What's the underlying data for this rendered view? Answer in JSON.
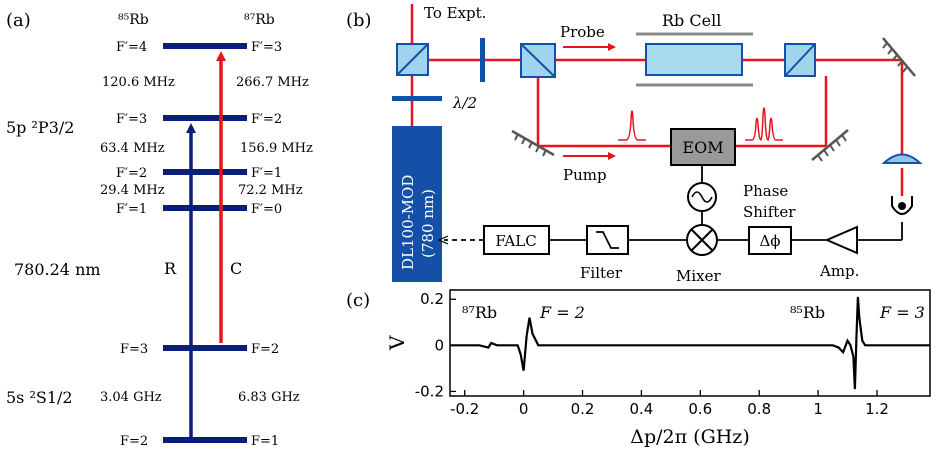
{
  "panel_a": {
    "label": "(a)",
    "header_rb85": "⁸⁵Rb",
    "header_rb87": "⁸⁷Rb",
    "levels": {
      "rb85_f4": "F′=4",
      "rb87_f3": "F′=3",
      "rb85_f3": "F′=3",
      "rb87_f2": "F′=2",
      "rb85_f2": "F′=2",
      "rb87_f1": "F′=1",
      "rb85_f1": "F′=1",
      "rb87_f0": "F′=0",
      "rb85_g3": "F=3",
      "rb87_g2": "F=2",
      "rb85_g2": "F=2",
      "rb87_g1": "F=1"
    },
    "splittings": {
      "rb85_43": "120.6 MHz",
      "rb87_32": "266.7 MHz",
      "rb85_32": "63.4 MHz",
      "rb87_21": "156.9 MHz",
      "rb85_21": "29.4 MHz",
      "rb87_10": "72.2 MHz",
      "rb85_ground": "3.04 GHz",
      "rb87_ground": "6.83 GHz"
    },
    "state_5p": "5p ²P3/2",
    "state_5s": "5s ²S1/2",
    "wavelength": "780.24 nm",
    "arrow_r": "R",
    "arrow_c": "C",
    "colors": {
      "navy": "#0a1f7a",
      "red": "#e8141b"
    }
  },
  "panel_b": {
    "label": "(b)",
    "to_expt": "To Expt.",
    "probe": "Probe",
    "rb_cell": "Rb Cell",
    "half_wave": "λ/2",
    "laser_line1": "DL100-MOD",
    "laser_line2": "(780 nm)",
    "eom": "EOM",
    "pump": "Pump",
    "phase_shifter_line1": "Phase",
    "phase_shifter_line2": "Shifter",
    "delta_phi": "Δϕ",
    "falc": "FALC",
    "filter": "Filter",
    "mixer": "Mixer",
    "amp": "Amp.",
    "colors": {
      "beam": "#e8141b",
      "laser": "#1550a8",
      "cell": "#a8dcec",
      "pbs": "#9fd4ec"
    }
  },
  "panel_c": {
    "label": "(c)",
    "ylabel": "V",
    "xlabel": "Δp/2π (GHz)",
    "annot_87": "⁸⁷Rb",
    "annot_87_f": "F = 2",
    "annot_85": "⁸⁵Rb",
    "annot_85_f": "F = 3"
  },
  "chart_data": {
    "type": "line",
    "xlabel": "Δp/2π (GHz)",
    "ylabel": "V",
    "xlim": [
      -0.25,
      1.38
    ],
    "ylim": [
      -0.22,
      0.24
    ],
    "xticks": [
      -0.2,
      0,
      0.2,
      0.4,
      0.6,
      0.8,
      1,
      1.2
    ],
    "xtick_labels": [
      "-0.2",
      "0",
      "0.2",
      "0.4",
      "0.6",
      "0.8",
      "1",
      "1.2"
    ],
    "yticks": [
      -0.2,
      0,
      0.2
    ],
    "ytick_labels": [
      "-0.2",
      "0",
      "0.2"
    ],
    "series": [
      {
        "x": [
          -0.25,
          -0.15,
          -0.12,
          -0.11,
          -0.09,
          -0.02,
          -0.01,
          0.0,
          0.01,
          0.02,
          0.03,
          0.05,
          0.1,
          0.3,
          0.6,
          0.9,
          1.0,
          1.05,
          1.07,
          1.085,
          1.1,
          1.11,
          1.12,
          1.125,
          1.13,
          1.135,
          1.14,
          1.15,
          1.16,
          1.18,
          1.25,
          1.38
        ],
        "y": [
          0.0,
          0.0,
          -0.01,
          0.01,
          0.0,
          0.0,
          -0.04,
          -0.11,
          0.04,
          0.12,
          0.05,
          0.0,
          0.0,
          0.0,
          0.0,
          0.0,
          0.0,
          0.0,
          -0.01,
          -0.03,
          0.02,
          0.0,
          -0.05,
          -0.19,
          0.03,
          0.21,
          0.12,
          0.02,
          0.0,
          0.0,
          0.0,
          0.0
        ]
      }
    ],
    "grid": false
  }
}
